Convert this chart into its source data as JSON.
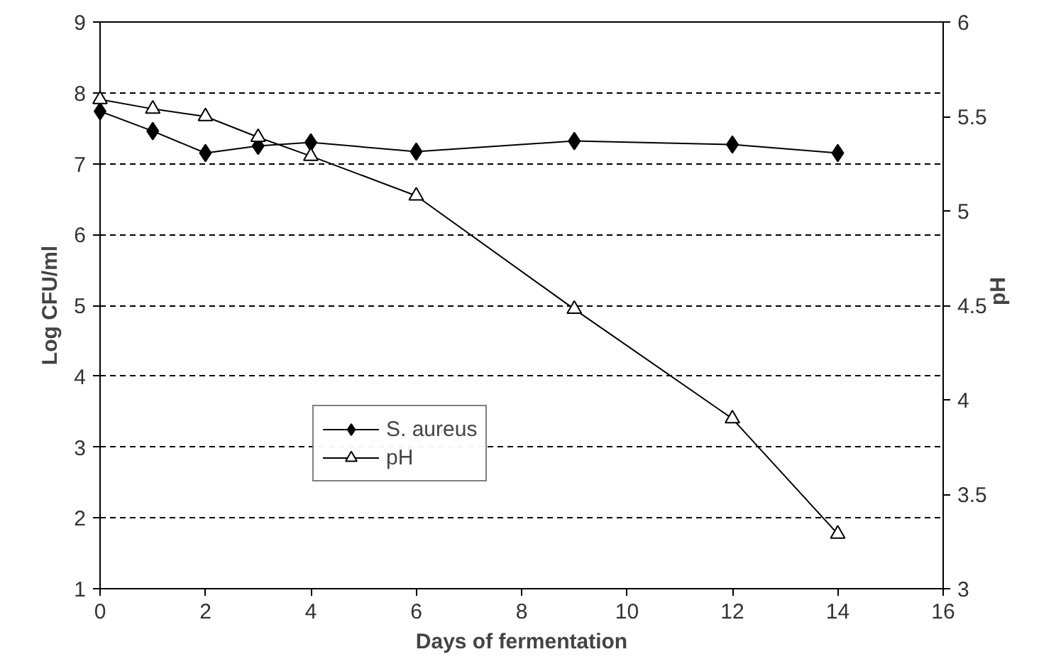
{
  "chart_data": {
    "type": "line",
    "xlabel": "Days of fermentation",
    "ylabel": "Log CFU/ml",
    "y2label": "pH",
    "x": [
      0,
      1,
      2,
      3,
      4,
      6,
      9,
      12,
      14
    ],
    "xlim": [
      0,
      16
    ],
    "xticks": [
      0,
      2,
      4,
      6,
      8,
      10,
      12,
      14,
      16
    ],
    "ylim": [
      1,
      9
    ],
    "yticks": [
      1,
      2,
      3,
      4,
      5,
      6,
      7,
      8,
      9
    ],
    "y2lim": [
      3,
      6
    ],
    "y2ticks": [
      3,
      3.5,
      4,
      4.5,
      5,
      5.5,
      6
    ],
    "grid": "y",
    "legend": "bottom left",
    "series": [
      {
        "name": "S. aureus",
        "color": "#000000",
        "marker": "diamond",
        "values": [
          7.74,
          7.46,
          7.15,
          7.25,
          7.3,
          7.17,
          7.32,
          7.27,
          7.15
        ]
      },
      {
        "name": "pH",
        "color": "#000000",
        "marker": "triangle",
        "axis": "y2",
        "values": [
          5.59,
          5.54,
          5.5,
          5.39,
          5.29,
          5.08,
          4.48,
          3.9,
          3.29
        ]
      }
    ]
  }
}
